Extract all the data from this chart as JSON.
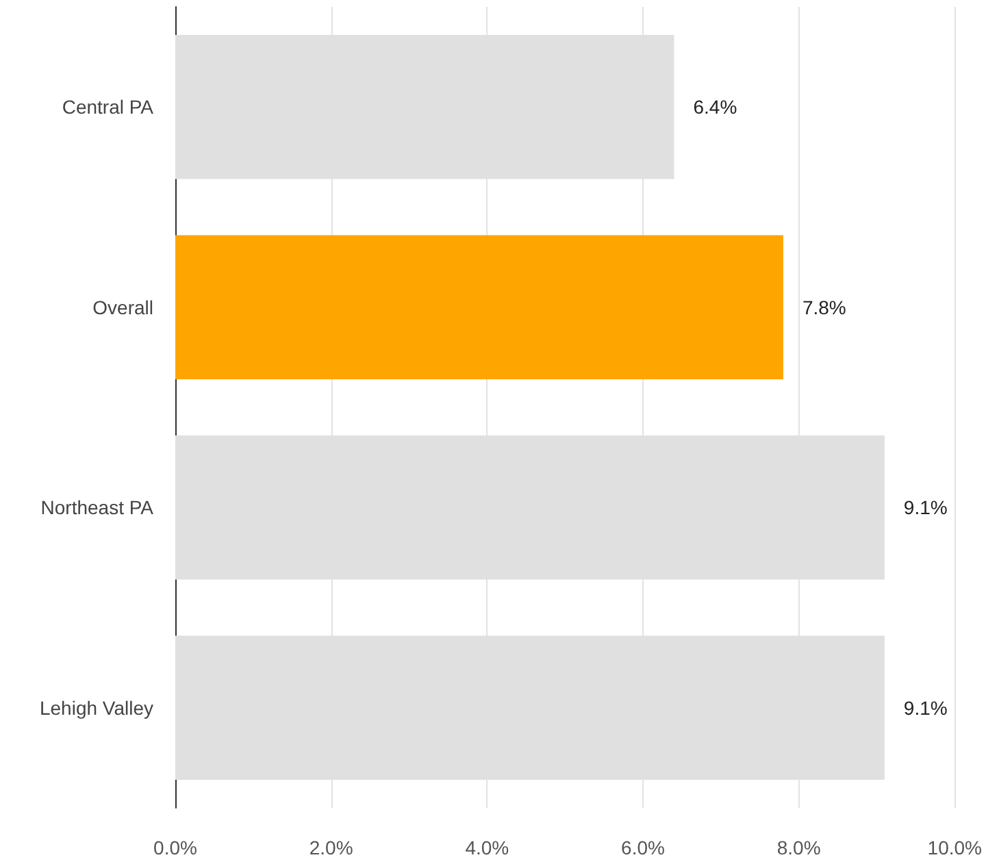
{
  "chart_data": {
    "type": "bar",
    "orientation": "horizontal",
    "categories": [
      "Central PA",
      "Overall",
      "Northeast PA",
      "Lehigh Valley"
    ],
    "values": [
      6.4,
      7.8,
      9.1,
      9.1
    ],
    "colors": [
      "#e0e0e0",
      "#ffa500",
      "#e0e0e0",
      "#e0e0e0"
    ],
    "value_labels": [
      "6.4%",
      "7.8%",
      "9.1%",
      "9.1%"
    ],
    "xlim": [
      0,
      10
    ],
    "xticks": [
      {
        "value": 0,
        "label": "0.0%"
      },
      {
        "value": 2,
        "label": "2.0%"
      },
      {
        "value": 4,
        "label": "4.0%"
      },
      {
        "value": 6,
        "label": "6.0%"
      },
      {
        "value": 8,
        "label": "8.0%"
      },
      {
        "value": 10,
        "label": "10.0%"
      }
    ],
    "grid": "x"
  }
}
